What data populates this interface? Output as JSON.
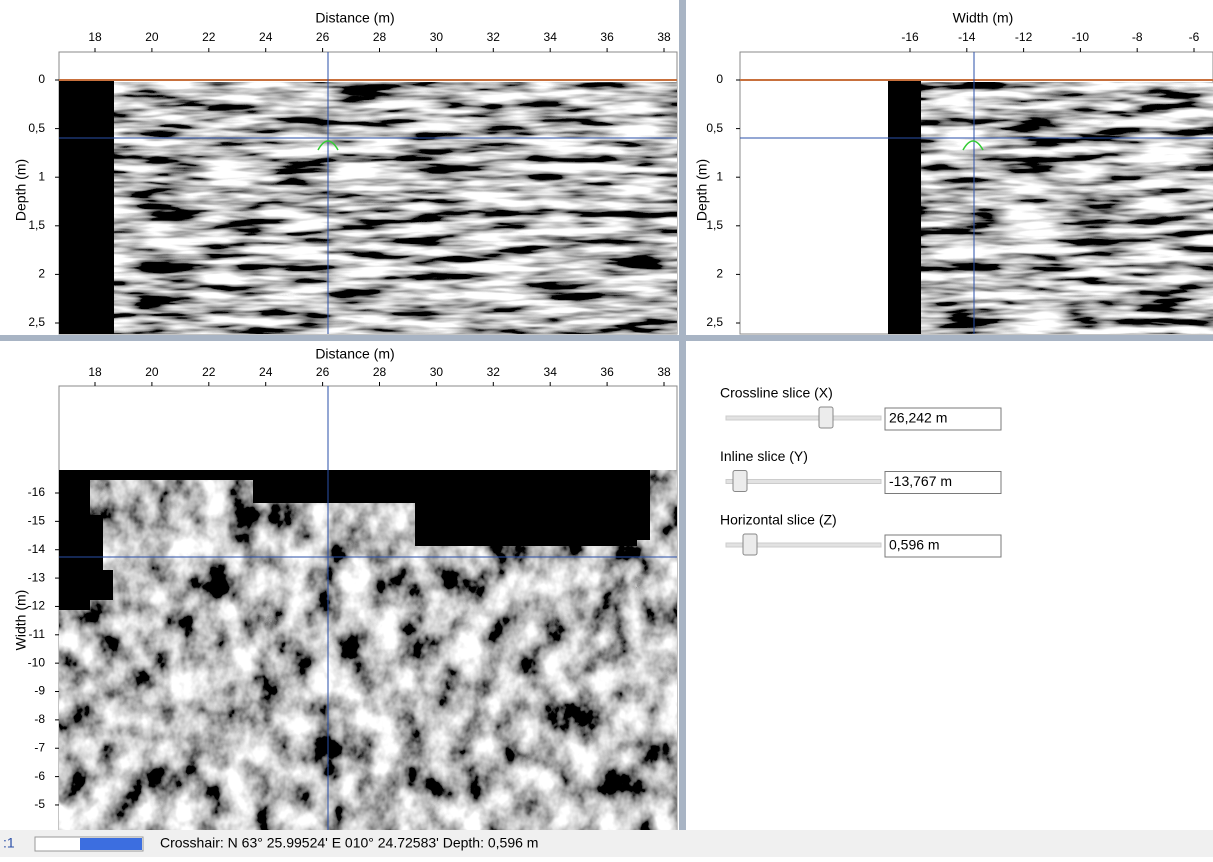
{
  "top_left": {
    "x_label": "Distance (m)",
    "y_label": "Depth (m)",
    "x_ticks": [
      "18",
      "20",
      "22",
      "24",
      "26",
      "28",
      "30",
      "32",
      "34",
      "36",
      "38"
    ],
    "y_ticks": [
      "0",
      "0,5",
      "1",
      "1,5",
      "2",
      "2,5"
    ]
  },
  "top_right": {
    "x_label": "Width (m)",
    "y_label": "Depth (m)",
    "x_ticks": [
      "-16",
      "-14",
      "-12",
      "-10",
      "-8",
      "-6"
    ],
    "y_ticks": [
      "0",
      "0,5",
      "1",
      "1,5",
      "2",
      "2,5"
    ]
  },
  "bottom_left": {
    "x_label": "Distance (m)",
    "y_label": "Width (m)",
    "x_ticks": [
      "18",
      "20",
      "22",
      "24",
      "26",
      "28",
      "30",
      "32",
      "34",
      "36",
      "38"
    ],
    "y_ticks": [
      "-16",
      "-15",
      "-14",
      "-13",
      "-12",
      "-11",
      "-10",
      "-9",
      "-8",
      "-7",
      "-6",
      "-5"
    ]
  },
  "controls": [
    {
      "label": "Crossline slice (X)",
      "value": "26,242 m"
    },
    {
      "label": "Inline slice (Y)",
      "value": "-13,767 m"
    },
    {
      "label": "Horizontal slice (Z)",
      "value": "0,596 m"
    }
  ],
  "status": {
    "prefix": ":1",
    "text": "Crosshair: N 63° 25.99524' E 010° 24.72583'  Depth: 0,596 m"
  }
}
